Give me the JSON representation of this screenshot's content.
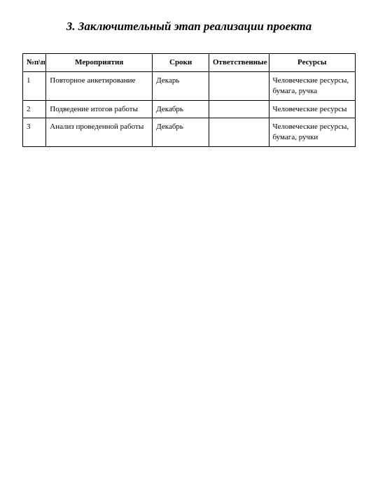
{
  "title": "3. Заключительный этап реализации проекта",
  "table": {
    "headers": {
      "num": "№п\\п",
      "event": "Мероприятия",
      "time": "Сроки",
      "resp": "Ответственные",
      "res": "Ресурсы"
    },
    "rows": [
      {
        "num": "1",
        "event": "Повторное анкетирование",
        "time": "Декарь",
        "resp": "",
        "res": "Человеческие ресурсы, бумага, ручка"
      },
      {
        "num": "2",
        "event": "Подведение итогов работы",
        "time": "Декабрь",
        "resp": "",
        "res": "Человеческие ресурсы"
      },
      {
        "num": "3",
        "event": "Анализ проведенной работы",
        "time": "Декабрь",
        "resp": "",
        "res": "Человеческие ресурсы, бумага, ручки"
      }
    ]
  },
  "styling": {
    "background_color": "#ffffff",
    "text_color": "#000000",
    "border_color": "#000000",
    "title_fontsize": 17,
    "title_weight": "bold",
    "title_style": "italic",
    "cell_fontsize": 11,
    "font_family": "Times New Roman",
    "column_widths_percent": [
      7,
      32,
      17,
      18,
      26
    ]
  }
}
